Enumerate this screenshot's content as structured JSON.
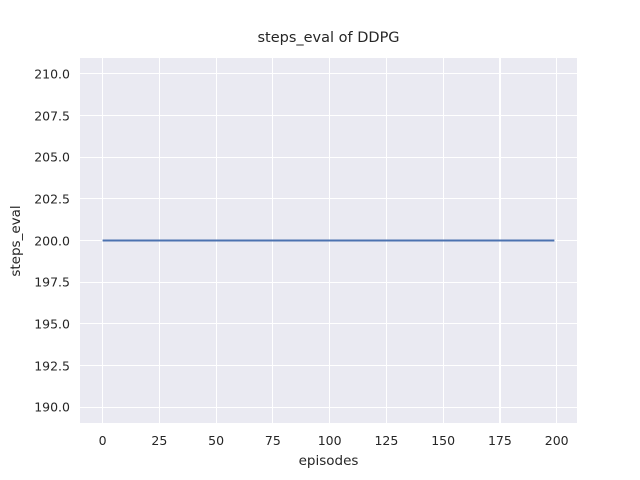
{
  "chart_data": {
    "type": "line",
    "title": "steps_eval of DDPG",
    "xlabel": "episodes",
    "ylabel": "steps_eval",
    "xlim": [
      -9.95,
      208.95
    ],
    "ylim": [
      189.05,
      210.95
    ],
    "x_ticks": [
      0,
      25,
      50,
      75,
      100,
      125,
      150,
      175,
      200
    ],
    "x_tick_labels": [
      "0",
      "25",
      "50",
      "75",
      "100",
      "125",
      "150",
      "175",
      "200"
    ],
    "y_ticks": [
      190.0,
      192.5,
      195.0,
      197.5,
      200.0,
      202.5,
      205.0,
      207.5,
      210.0
    ],
    "y_tick_labels": [
      "190.0",
      "192.5",
      "195.0",
      "197.5",
      "200.0",
      "202.5",
      "205.0",
      "207.5",
      "210.0"
    ],
    "grid": true,
    "legend_position": "none",
    "series": [
      {
        "name": "DDPG",
        "color": "#4c72b0",
        "x": [
          0,
          199
        ],
        "y": [
          200,
          200
        ]
      }
    ],
    "colors": {
      "figure_background": "#ffffff",
      "axes_background": "#eaeaf2",
      "gridline": "#ffffff",
      "text": "#262626"
    }
  }
}
